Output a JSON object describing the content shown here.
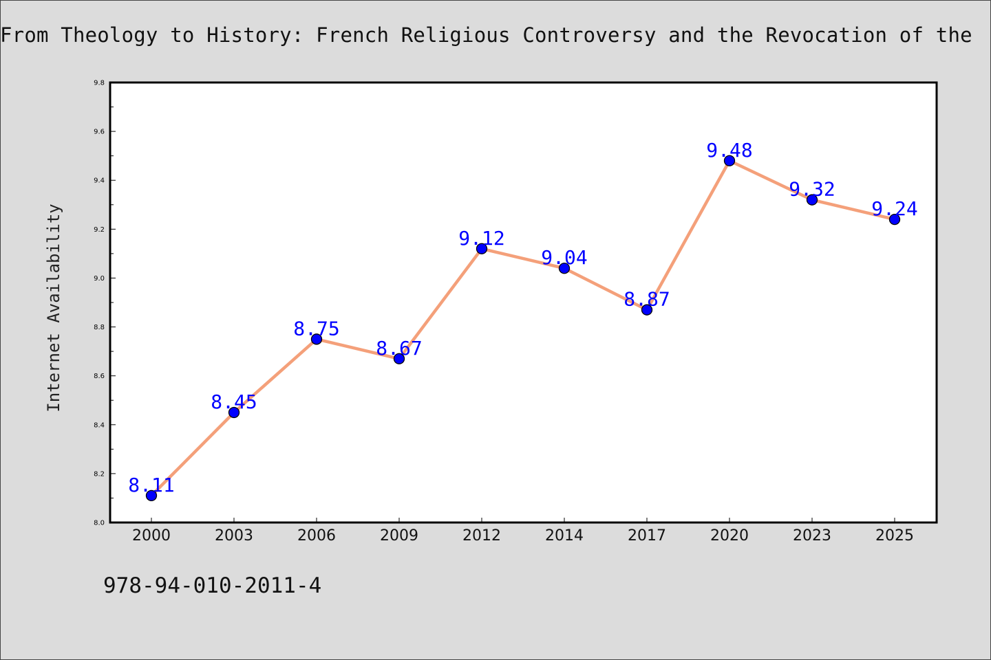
{
  "chart_data": {
    "type": "line",
    "title": "From Theology to History: French Religious Controversy and the Revocation of the",
    "xlabel": "",
    "ylabel": "Internet Availability",
    "categories": [
      "2000",
      "2003",
      "2006",
      "2009",
      "2012",
      "2014",
      "2017",
      "2020",
      "2023",
      "2025"
    ],
    "series": [
      {
        "values": [
          8.11,
          8.45,
          8.75,
          8.67,
          9.12,
          9.04,
          8.87,
          9.48,
          9.32,
          9.24
        ]
      }
    ],
    "data_labels": [
      "8.11",
      "8.45",
      "8.75",
      "8.67",
      "9.12",
      "9.04",
      "8.87",
      "9.48",
      "9.32",
      "9.24"
    ],
    "ylim": [
      8.0,
      9.8
    ],
    "yticks": [
      "8.0",
      "8.2",
      "8.4",
      "8.6",
      "8.8",
      "9.0",
      "9.2",
      "9.4",
      "9.6",
      "9.8"
    ],
    "grid": false,
    "legend": "none",
    "colors": {
      "line": "#f4a07a",
      "marker": "#0000ff",
      "label": "#0000ff"
    }
  },
  "footer": {
    "isbn": "978-94-010-2011-4"
  }
}
